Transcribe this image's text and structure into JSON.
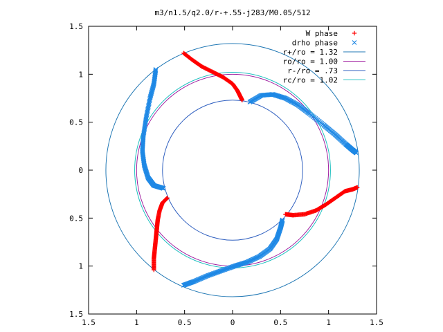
{
  "chart_data": {
    "type": "scatter",
    "title": "m3/n1.5/q2.0/r-+.55-j283/M0.05/512",
    "xlabel": "",
    "ylabel": "",
    "xlim": [
      -1.5,
      1.5
    ],
    "ylim": [
      -1.5,
      1.5
    ],
    "x_ticks": [
      "1.5",
      "1",
      "0.5",
      "0",
      "0.5",
      "1",
      "1.5"
    ],
    "x_tick_values": [
      -1.5,
      -1,
      -0.5,
      0,
      0.5,
      1,
      1.5
    ],
    "y_ticks": [
      "1.5",
      "1",
      "0.5",
      "0",
      "0.5",
      "1",
      "1.5"
    ],
    "y_tick_values": [
      1.5,
      1,
      0.5,
      0,
      -0.5,
      -1,
      -1.5
    ],
    "grid": false,
    "legend_position": "top-right",
    "circles": [
      {
        "name": "r+/ro = 1.32",
        "radius": 1.32,
        "color": "#1f77b4"
      },
      {
        "name": "ro/ro = 1.00",
        "radius": 1.0,
        "color": "#a020a0"
      },
      {
        "name": "r-/ro = .73",
        "radius": 0.73,
        "color": "#3060c0"
      },
      {
        "name": "rc/ro = 1.02",
        "radius": 1.02,
        "color": "#20c0c0"
      }
    ],
    "series": [
      {
        "name": "W phase",
        "marker": "+",
        "color": "#ff0000",
        "arms": [
          [
            [
              -0.51,
              1.22
            ],
            [
              -0.42,
              1.15
            ],
            [
              -0.32,
              1.08
            ],
            [
              -0.2,
              1.02
            ],
            [
              -0.1,
              0.97
            ],
            [
              0.0,
              0.9
            ],
            [
              0.05,
              0.83
            ],
            [
              0.08,
              0.77
            ],
            [
              0.1,
              0.73
            ]
          ],
          [
            [
              -0.68,
              -0.29
            ],
            [
              -0.73,
              -0.34
            ],
            [
              -0.76,
              -0.42
            ],
            [
              -0.78,
              -0.52
            ],
            [
              -0.79,
              -0.62
            ],
            [
              -0.8,
              -0.72
            ],
            [
              -0.81,
              -0.82
            ],
            [
              -0.82,
              -0.92
            ],
            [
              -0.82,
              -1.04
            ]
          ],
          [
            [
              0.55,
              -0.46
            ],
            [
              0.63,
              -0.47
            ],
            [
              0.75,
              -0.46
            ],
            [
              0.87,
              -0.42
            ],
            [
              0.97,
              -0.36
            ],
            [
              1.07,
              -0.29
            ],
            [
              1.17,
              -0.22
            ],
            [
              1.25,
              -0.2
            ],
            [
              1.3,
              -0.18
            ]
          ]
        ]
      },
      {
        "name": "drho phase",
        "marker": "x",
        "color": "#1e88e5",
        "arms": [
          [
            [
              -0.8,
              1.05
            ],
            [
              -0.82,
              0.9
            ],
            [
              -0.86,
              0.75
            ],
            [
              -0.9,
              0.55
            ],
            [
              -0.93,
              0.35
            ],
            [
              -0.94,
              0.2
            ],
            [
              -0.92,
              0.05
            ],
            [
              -0.88,
              -0.08
            ],
            [
              -0.82,
              -0.16
            ],
            [
              -0.72,
              -0.19
            ]
          ],
          [
            [
              -0.51,
              -1.2
            ],
            [
              -0.4,
              -1.16
            ],
            [
              -0.26,
              -1.1
            ],
            [
              -0.12,
              -1.05
            ],
            [
              0.02,
              -1.0
            ],
            [
              0.15,
              -0.96
            ],
            [
              0.28,
              -0.9
            ],
            [
              0.39,
              -0.82
            ],
            [
              0.46,
              -0.72
            ],
            [
              0.5,
              -0.6
            ],
            [
              0.52,
              -0.52
            ]
          ],
          [
            [
              0.18,
              0.71
            ],
            [
              0.3,
              0.78
            ],
            [
              0.42,
              0.79
            ],
            [
              0.55,
              0.75
            ],
            [
              0.68,
              0.68
            ],
            [
              0.8,
              0.59
            ],
            [
              0.95,
              0.47
            ],
            [
              1.07,
              0.37
            ],
            [
              1.18,
              0.27
            ],
            [
              1.25,
              0.21
            ],
            [
              1.29,
              0.18
            ]
          ]
        ]
      }
    ]
  }
}
